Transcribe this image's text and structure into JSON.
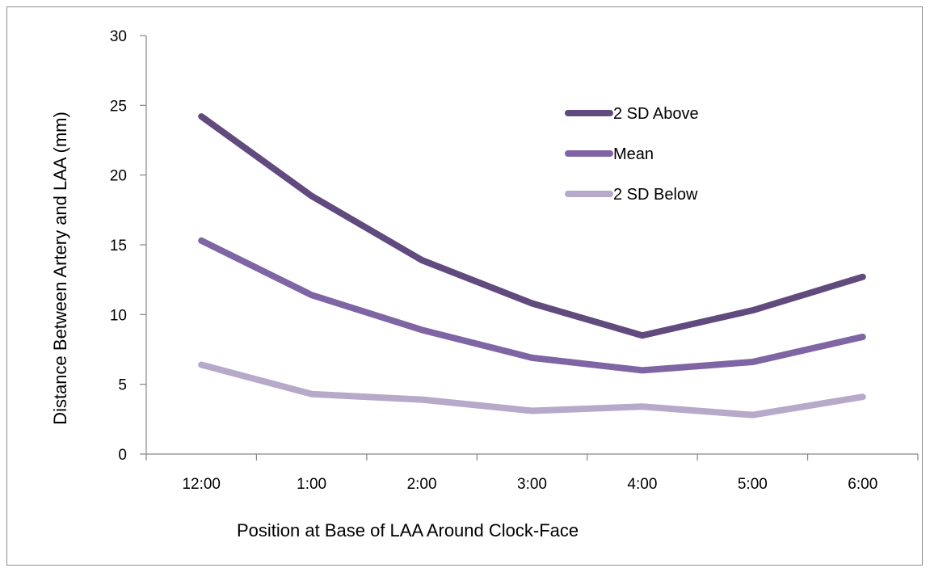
{
  "chart_data": {
    "type": "line",
    "title": "",
    "xlabel": "Position at Base of LAA Around Clock-Face",
    "ylabel": "Distance Between Artery and LAA (mm)",
    "categories": [
      "12:00",
      "1:00",
      "2:00",
      "3:00",
      "4:00",
      "5:00",
      "6:00"
    ],
    "ylim": [
      0,
      30
    ],
    "yticks": [
      0,
      5,
      10,
      15,
      20,
      25,
      30
    ],
    "grid": false,
    "legend_position": "top-right",
    "series": [
      {
        "name": "2 SD Above",
        "color": "#614a7d",
        "values": [
          24.2,
          18.5,
          13.9,
          10.8,
          8.5,
          10.3,
          12.7
        ]
      },
      {
        "name": "Mean",
        "color": "#7f65a3",
        "values": [
          15.3,
          11.4,
          8.9,
          6.9,
          6.0,
          6.6,
          8.4
        ]
      },
      {
        "name": "2 SD Below",
        "color": "#b7a9c9",
        "values": [
          6.4,
          4.3,
          3.9,
          3.1,
          3.4,
          2.8,
          4.1
        ]
      }
    ]
  }
}
